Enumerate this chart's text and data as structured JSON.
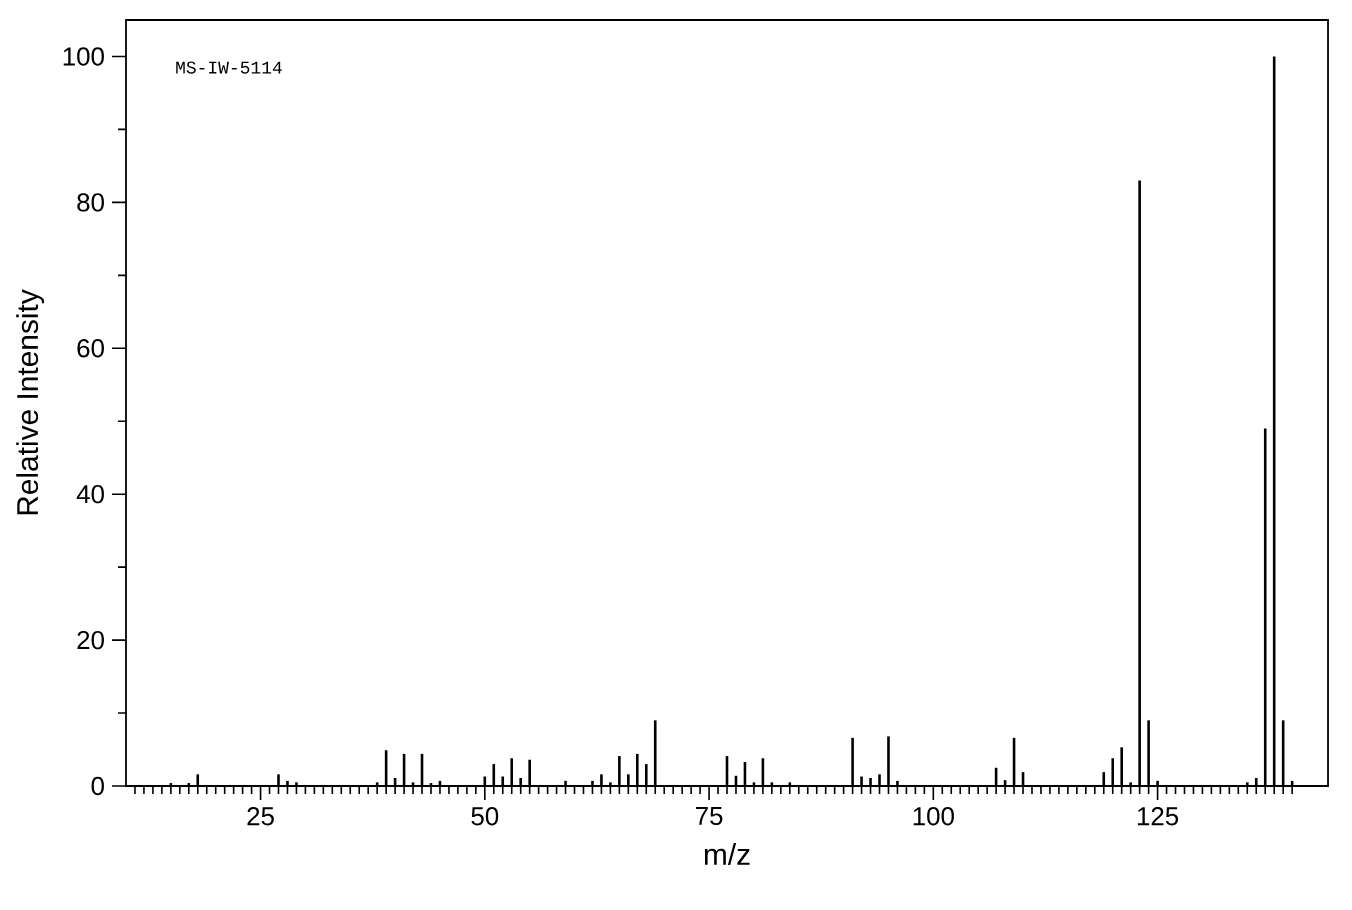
{
  "chart_data": {
    "type": "bar",
    "xlabel": "m/z",
    "ylabel": "Relative Intensity",
    "annotations": [
      "MS-IW-5114"
    ],
    "x": [
      15,
      17,
      18,
      27,
      28,
      29,
      38,
      39,
      40,
      41,
      42,
      43,
      44,
      45,
      50,
      51,
      52,
      53,
      54,
      55,
      59,
      62,
      63,
      64,
      65,
      66,
      67,
      68,
      69,
      77,
      78,
      79,
      80,
      81,
      82,
      84,
      91,
      92,
      93,
      94,
      95,
      96,
      107,
      108,
      109,
      110,
      119,
      120,
      121,
      122,
      123,
      124,
      125,
      135,
      136,
      137,
      138,
      139,
      140
    ],
    "values": [
      0.4,
      0.4,
      1.6,
      1.6,
      0.7,
      0.5,
      0.5,
      4.9,
      1.1,
      4.4,
      0.5,
      4.4,
      0.4,
      0.7,
      1.3,
      3.0,
      1.3,
      3.8,
      1.1,
      3.6,
      0.7,
      0.7,
      1.6,
      0.5,
      4.1,
      1.6,
      4.4,
      3.0,
      9.0,
      4.1,
      1.4,
      3.3,
      0.5,
      3.8,
      0.5,
      0.5,
      6.6,
      1.3,
      1.1,
      1.6,
      6.8,
      0.7,
      2.5,
      0.8,
      6.6,
      1.9,
      1.9,
      3.8,
      5.3,
      0.5,
      83,
      9.0,
      0.7,
      0.5,
      1.1,
      49,
      100,
      9.0,
      0.7
    ],
    "color": "#000000",
    "xlim": [
      10,
      144
    ],
    "ylim": [
      0,
      105
    ],
    "xticks": [
      {
        "value": 11,
        "label": null
      },
      {
        "value": 12,
        "label": null
      },
      {
        "value": 13,
        "label": null
      },
      {
        "value": 14,
        "label": null
      },
      {
        "value": 15,
        "label": null
      },
      {
        "value": 16,
        "label": null
      },
      {
        "value": 17,
        "label": null
      },
      {
        "value": 18,
        "label": null
      },
      {
        "value": 19,
        "label": null
      },
      {
        "value": 20,
        "label": null
      },
      {
        "value": 21,
        "label": null
      },
      {
        "value": 22,
        "label": null
      },
      {
        "value": 23,
        "label": null
      },
      {
        "value": 24,
        "label": null
      },
      25,
      {
        "value": 26,
        "label": null
      },
      {
        "value": 27,
        "label": null
      },
      {
        "value": 28,
        "label": null
      },
      {
        "value": 29,
        "label": null
      },
      {
        "value": 30,
        "label": null
      },
      {
        "value": 31,
        "label": null
      },
      {
        "value": 32,
        "label": null
      },
      {
        "value": 33,
        "label": null
      },
      {
        "value": 34,
        "label": null
      },
      {
        "value": 35,
        "label": null
      },
      {
        "value": 36,
        "label": null
      },
      {
        "value": 37,
        "label": null
      },
      {
        "value": 38,
        "label": null
      },
      {
        "value": 39,
        "label": null
      },
      {
        "value": 40,
        "label": null
      },
      {
        "value": 41,
        "label": null
      },
      {
        "value": 42,
        "label": null
      },
      {
        "value": 43,
        "label": null
      },
      {
        "value": 44,
        "label": null
      },
      {
        "value": 45,
        "label": null
      },
      {
        "value": 46,
        "label": null
      },
      {
        "value": 47,
        "label": null
      },
      {
        "value": 48,
        "label": null
      },
      {
        "value": 49,
        "label": null
      },
      50,
      {
        "value": 51,
        "label": null
      },
      {
        "value": 52,
        "label": null
      },
      {
        "value": 53,
        "label": null
      },
      {
        "value": 54,
        "label": null
      },
      {
        "value": 55,
        "label": null
      },
      {
        "value": 56,
        "label": null
      },
      {
        "value": 57,
        "label": null
      },
      {
        "value": 58,
        "label": null
      },
      {
        "value": 59,
        "label": null
      },
      {
        "value": 60,
        "label": null
      },
      {
        "value": 61,
        "label": null
      },
      {
        "value": 62,
        "label": null
      },
      {
        "value": 63,
        "label": null
      },
      {
        "value": 64,
        "label": null
      },
      {
        "value": 65,
        "label": null
      },
      {
        "value": 66,
        "label": null
      },
      {
        "value": 67,
        "label": null
      },
      {
        "value": 68,
        "label": null
      },
      {
        "value": 69,
        "label": null
      },
      {
        "value": 70,
        "label": null
      },
      {
        "value": 71,
        "label": null
      },
      {
        "value": 72,
        "label": null
      },
      {
        "value": 73,
        "label": null
      },
      {
        "value": 74,
        "label": null
      },
      75,
      {
        "value": 76,
        "label": null
      },
      {
        "value": 77,
        "label": null
      },
      {
        "value": 78,
        "label": null
      },
      {
        "value": 79,
        "label": null
      },
      {
        "value": 80,
        "label": null
      },
      {
        "value": 81,
        "label": null
      },
      {
        "value": 82,
        "label": null
      },
      {
        "value": 83,
        "label": null
      },
      {
        "value": 84,
        "label": null
      },
      {
        "value": 85,
        "label": null
      },
      {
        "value": 86,
        "label": null
      },
      {
        "value": 87,
        "label": null
      },
      {
        "value": 88,
        "label": null
      },
      {
        "value": 89,
        "label": null
      },
      {
        "value": 90,
        "label": null
      },
      {
        "value": 91,
        "label": null
      },
      {
        "value": 92,
        "label": null
      },
      {
        "value": 93,
        "label": null
      },
      {
        "value": 94,
        "label": null
      },
      {
        "value": 95,
        "label": null
      },
      {
        "value": 96,
        "label": null
      },
      {
        "value": 97,
        "label": null
      },
      {
        "value": 98,
        "label": null
      },
      {
        "value": 99,
        "label": null
      },
      100,
      {
        "value": 101,
        "label": null
      },
      {
        "value": 102,
        "label": null
      },
      {
        "value": 103,
        "label": null
      },
      {
        "value": 104,
        "label": null
      },
      {
        "value": 105,
        "label": null
      },
      {
        "value": 106,
        "label": null
      },
      {
        "value": 107,
        "label": null
      },
      {
        "value": 108,
        "label": null
      },
      {
        "value": 109,
        "label": null
      },
      {
        "value": 110,
        "label": null
      },
      {
        "value": 111,
        "label": null
      },
      {
        "value": 112,
        "label": null
      },
      {
        "value": 113,
        "label": null
      },
      {
        "value": 114,
        "label": null
      },
      {
        "value": 115,
        "label": null
      },
      {
        "value": 116,
        "label": null
      },
      {
        "value": 117,
        "label": null
      },
      {
        "value": 118,
        "label": null
      },
      {
        "value": 119,
        "label": null
      },
      {
        "value": 120,
        "label": null
      },
      {
        "value": 121,
        "label": null
      },
      {
        "value": 122,
        "label": null
      },
      {
        "value": 123,
        "label": null
      },
      {
        "value": 124,
        "label": null
      },
      125,
      {
        "value": 126,
        "label": null
      },
      {
        "value": 127,
        "label": null
      },
      {
        "value": 128,
        "label": null
      },
      {
        "value": 129,
        "label": null
      },
      {
        "value": 130,
        "label": null
      },
      {
        "value": 131,
        "label": null
      },
      {
        "value": 132,
        "label": null
      },
      {
        "value": 133,
        "label": null
      },
      {
        "value": 134,
        "label": null
      },
      {
        "value": 135,
        "label": null
      },
      {
        "value": 136,
        "label": null
      },
      {
        "value": 137,
        "label": null
      },
      {
        "value": 138,
        "label": null
      },
      {
        "value": 139,
        "label": null
      },
      {
        "value": 140,
        "label": null
      }
    ],
    "yticks": [
      0,
      {
        "value": 10,
        "label": null
      },
      20,
      {
        "value": 30,
        "label": null
      },
      40,
      {
        "value": 50,
        "label": null
      },
      60,
      {
        "value": 70,
        "label": null
      },
      80,
      {
        "value": 90,
        "label": null
      },
      100
    ]
  }
}
